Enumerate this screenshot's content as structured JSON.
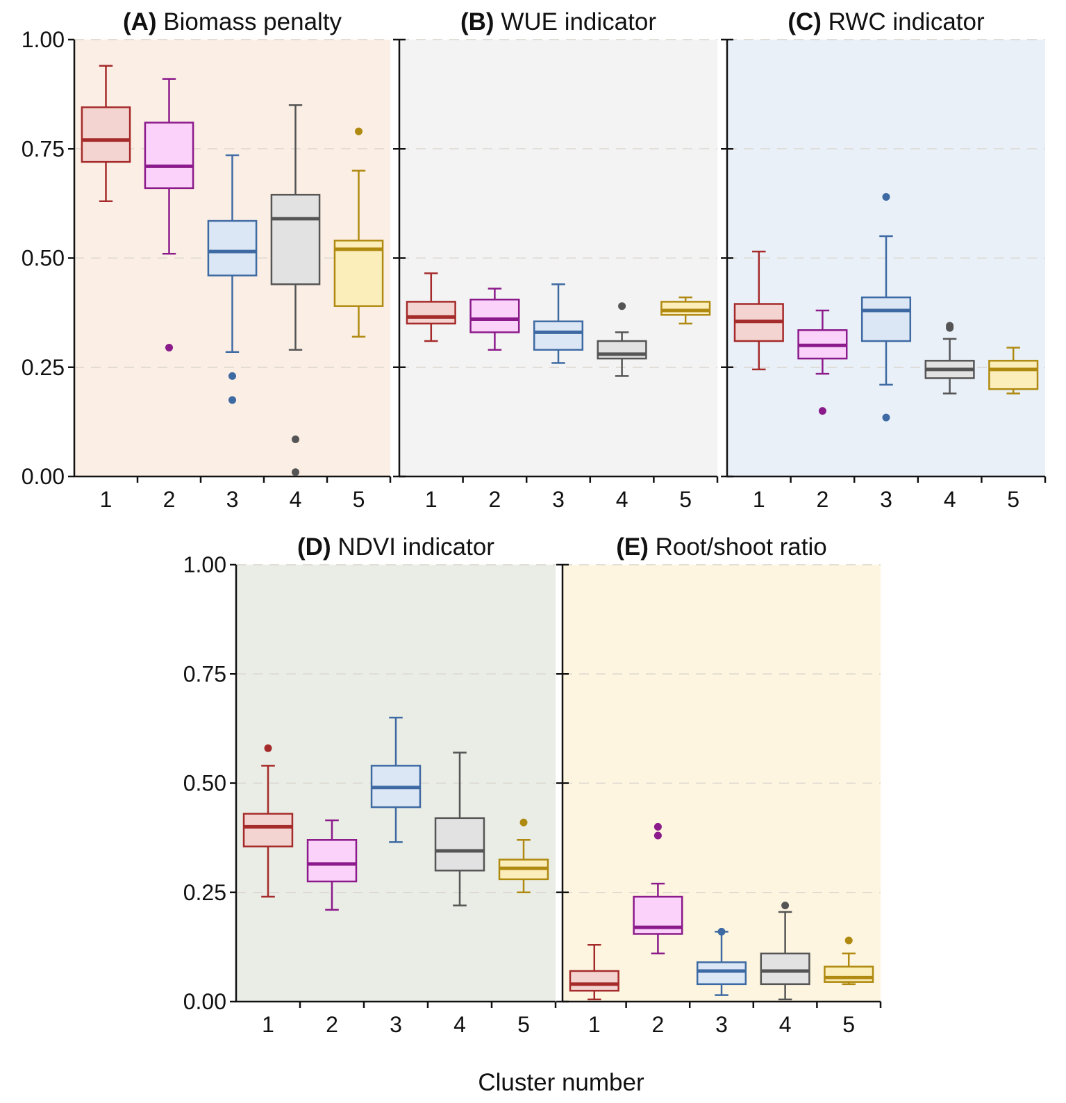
{
  "chart_data": {
    "type": "box",
    "xlabel": "Cluster number",
    "categories": [
      "1",
      "2",
      "3",
      "4",
      "5"
    ],
    "y_ticks": [
      "0.00",
      "0.25",
      "0.50",
      "0.75",
      "1.00"
    ],
    "ylim": [
      0,
      1
    ],
    "series_colors": [
      "#a52a2a",
      "#8b1a8b",
      "#3e6aa3",
      "#555555",
      "#b08a10"
    ],
    "series_fills": [
      "#f3d4d0",
      "#fad2fa",
      "#dce7f6",
      "#e2e2e2",
      "#fbeebb"
    ],
    "panels": [
      {
        "tag": "(A)",
        "title": "Biomass penalty",
        "background": "#fbeee4",
        "boxes": [
          {
            "cluster": "1",
            "min": 0.63,
            "q1": 0.72,
            "median": 0.77,
            "q3": 0.845,
            "max": 0.94,
            "outliers": []
          },
          {
            "cluster": "2",
            "min": 0.51,
            "q1": 0.66,
            "median": 0.71,
            "q3": 0.81,
            "max": 0.91,
            "outliers": [
              0.295
            ]
          },
          {
            "cluster": "3",
            "min": 0.285,
            "q1": 0.46,
            "median": 0.515,
            "q3": 0.585,
            "max": 0.735,
            "outliers": [
              0.23,
              0.175
            ]
          },
          {
            "cluster": "4",
            "min": 0.29,
            "q1": 0.44,
            "median": 0.59,
            "q3": 0.645,
            "max": 0.85,
            "outliers": [
              0.085,
              0.01
            ]
          },
          {
            "cluster": "5",
            "min": 0.32,
            "q1": 0.39,
            "median": 0.52,
            "q3": 0.54,
            "max": 0.7,
            "outliers": [
              0.79
            ]
          }
        ]
      },
      {
        "tag": "(B)",
        "title": "WUE indicator",
        "background": "#f3f3f3",
        "boxes": [
          {
            "cluster": "1",
            "min": 0.31,
            "q1": 0.35,
            "median": 0.365,
            "q3": 0.4,
            "max": 0.465,
            "outliers": []
          },
          {
            "cluster": "2",
            "min": 0.29,
            "q1": 0.33,
            "median": 0.36,
            "q3": 0.405,
            "max": 0.43,
            "outliers": []
          },
          {
            "cluster": "3",
            "min": 0.26,
            "q1": 0.29,
            "median": 0.33,
            "q3": 0.355,
            "max": 0.44,
            "outliers": []
          },
          {
            "cluster": "4",
            "min": 0.23,
            "q1": 0.27,
            "median": 0.28,
            "q3": 0.31,
            "max": 0.33,
            "outliers": [
              0.39
            ]
          },
          {
            "cluster": "5",
            "min": 0.35,
            "q1": 0.37,
            "median": 0.38,
            "q3": 0.4,
            "max": 0.41,
            "outliers": []
          }
        ]
      },
      {
        "tag": "(C)",
        "title": "RWC indicator",
        "background": "#e9f0f8",
        "boxes": [
          {
            "cluster": "1",
            "min": 0.245,
            "q1": 0.31,
            "median": 0.355,
            "q3": 0.395,
            "max": 0.515,
            "outliers": []
          },
          {
            "cluster": "2",
            "min": 0.235,
            "q1": 0.27,
            "median": 0.3,
            "q3": 0.335,
            "max": 0.38,
            "outliers": [
              0.15
            ]
          },
          {
            "cluster": "3",
            "min": 0.21,
            "q1": 0.31,
            "median": 0.38,
            "q3": 0.41,
            "max": 0.55,
            "outliers": [
              0.64,
              0.135
            ]
          },
          {
            "cluster": "4",
            "min": 0.19,
            "q1": 0.225,
            "median": 0.245,
            "q3": 0.265,
            "max": 0.315,
            "outliers": [
              0.34,
              0.345
            ]
          },
          {
            "cluster": "5",
            "min": 0.19,
            "q1": 0.2,
            "median": 0.245,
            "q3": 0.265,
            "max": 0.295,
            "outliers": []
          }
        ]
      },
      {
        "tag": "(D)",
        "title": "NDVI indicator",
        "background": "#e9ede5",
        "boxes": [
          {
            "cluster": "1",
            "min": 0.24,
            "q1": 0.355,
            "median": 0.4,
            "q3": 0.43,
            "max": 0.54,
            "outliers": [
              0.58
            ]
          },
          {
            "cluster": "2",
            "min": 0.21,
            "q1": 0.275,
            "median": 0.315,
            "q3": 0.37,
            "max": 0.415,
            "outliers": []
          },
          {
            "cluster": "3",
            "min": 0.365,
            "q1": 0.445,
            "median": 0.49,
            "q3": 0.54,
            "max": 0.65,
            "outliers": []
          },
          {
            "cluster": "4",
            "min": 0.22,
            "q1": 0.3,
            "median": 0.345,
            "q3": 0.42,
            "max": 0.57,
            "outliers": []
          },
          {
            "cluster": "5",
            "min": 0.25,
            "q1": 0.28,
            "median": 0.305,
            "q3": 0.325,
            "max": 0.37,
            "outliers": [
              0.41
            ]
          }
        ]
      },
      {
        "tag": "(E)",
        "title": "Root/shoot ratio",
        "background": "#fdf5e0",
        "boxes": [
          {
            "cluster": "1",
            "min": 0.005,
            "q1": 0.025,
            "median": 0.04,
            "q3": 0.07,
            "max": 0.13,
            "outliers": []
          },
          {
            "cluster": "2",
            "min": 0.11,
            "q1": 0.155,
            "median": 0.17,
            "q3": 0.24,
            "max": 0.27,
            "outliers": [
              0.38,
              0.4
            ]
          },
          {
            "cluster": "3",
            "min": 0.015,
            "q1": 0.04,
            "median": 0.07,
            "q3": 0.09,
            "max": 0.16,
            "outliers": [
              0.16
            ]
          },
          {
            "cluster": "4",
            "min": 0.005,
            "q1": 0.04,
            "median": 0.07,
            "q3": 0.11,
            "max": 0.205,
            "outliers": [
              0.22
            ]
          },
          {
            "cluster": "5",
            "min": 0.04,
            "q1": 0.045,
            "median": 0.055,
            "q3": 0.08,
            "max": 0.11,
            "outliers": [
              0.14
            ]
          }
        ]
      }
    ]
  }
}
